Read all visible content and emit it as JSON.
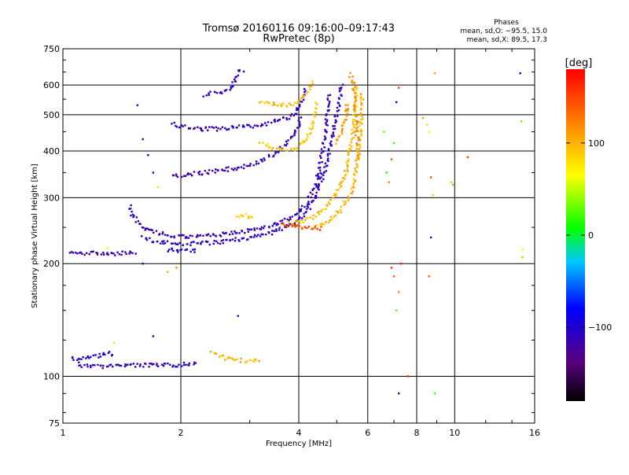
{
  "header": {
    "title": "Tromsø 20160116 09:16:00–09:17:43",
    "subtitle": "RwPretec (8p)"
  },
  "phase_box": {
    "title": "Phases",
    "line_o": "mean, sd,O: −95.5, 15.0",
    "line_x": "mean, sd,X:  89.5, 17.3"
  },
  "colorbar": {
    "unit_label": "[deg]",
    "range": [
      -180,
      180
    ],
    "ticks": [
      {
        "value": 100,
        "label": "100"
      },
      {
        "value": 0,
        "label": "0"
      },
      {
        "value": -100,
        "label": "−100"
      }
    ]
  },
  "chart_data": {
    "type": "scatter",
    "title": "Tromsø 20160116 09:16:00–09:17:43",
    "subtitle": "RwPretec (8p)",
    "xlabel": "Frequency [MHz]",
    "ylabel": "Stationary phase Virtual Height [km]",
    "x_scale": "log",
    "y_scale": "log",
    "xlim": [
      1,
      16
    ],
    "ylim": [
      75,
      750
    ],
    "x_ticks": [
      {
        "value": 1,
        "label": "1"
      },
      {
        "value": 2,
        "label": "2"
      },
      {
        "value": 4,
        "label": "4"
      },
      {
        "value": 6,
        "label": "6"
      },
      {
        "value": 8,
        "label": "8"
      },
      {
        "value": 10,
        "label": "10"
      },
      {
        "value": 16,
        "label": "16"
      }
    ],
    "y_ticks": [
      {
        "value": 75,
        "label": "75"
      },
      {
        "value": 100,
        "label": "100"
      },
      {
        "value": 200,
        "label": "200"
      },
      {
        "value": 300,
        "label": "300"
      },
      {
        "value": 400,
        "label": "400"
      },
      {
        "value": 500,
        "label": "500"
      },
      {
        "value": 600,
        "label": "600"
      },
      {
        "value": 750,
        "label": "750"
      }
    ],
    "x_gridlines": [
      2,
      4,
      6,
      8,
      10
    ],
    "y_gridlines": [
      100,
      200,
      300,
      400,
      500,
      600
    ],
    "grid": true,
    "color_variable": "phase (deg)",
    "color_range": [
      -180,
      180
    ],
    "traces": [
      {
        "name": "",
        "phase": -110,
        "points": [
          [
            1.1,
            107
          ],
          [
            1.15,
            106.5
          ],
          [
            1.2,
            107
          ],
          [
            1.3,
            106
          ],
          [
            1.4,
            107.5
          ],
          [
            1.5,
            107
          ],
          [
            1.6,
            107
          ],
          [
            1.7,
            107
          ],
          [
            1.8,
            107
          ],
          [
            1.9,
            107
          ],
          [
            2.0,
            107.5
          ],
          [
            2.1,
            108
          ],
          [
            2.2,
            108
          ]
        ]
      },
      {
        "name": "",
        "phase": -100,
        "points": [
          [
            1.05,
            112
          ],
          [
            1.1,
            110
          ],
          [
            1.15,
            112
          ],
          [
            1.2,
            113
          ],
          [
            1.25,
            114
          ],
          [
            1.3,
            116
          ],
          [
            1.35,
            113
          ]
        ]
      },
      {
        "name": "",
        "phase": 100,
        "points": [
          [
            2.4,
            116
          ],
          [
            2.5,
            114
          ],
          [
            2.6,
            112
          ],
          [
            2.7,
            111
          ],
          [
            2.8,
            110.5
          ],
          [
            2.9,
            110
          ],
          [
            3.0,
            110
          ],
          [
            3.1,
            110
          ],
          [
            3.2,
            110
          ]
        ]
      },
      {
        "name": "",
        "phase": -110,
        "points": [
          [
            1.05,
            213
          ],
          [
            1.1,
            213
          ],
          [
            1.15,
            213
          ],
          [
            1.2,
            213
          ],
          [
            1.3,
            213
          ],
          [
            1.4,
            213
          ],
          [
            1.5,
            213
          ],
          [
            1.55,
            214
          ]
        ]
      },
      {
        "name": "",
        "phase": -110,
        "points": [
          [
            1.48,
            285
          ],
          [
            1.5,
            270
          ],
          [
            1.55,
            258
          ],
          [
            1.6,
            250
          ],
          [
            1.7,
            243
          ],
          [
            1.8,
            240
          ],
          [
            2.0,
            236
          ],
          [
            2.2,
            236
          ],
          [
            2.4,
            238
          ],
          [
            2.6,
            240
          ],
          [
            2.8,
            243
          ],
          [
            3.0,
            245
          ],
          [
            3.2,
            248
          ],
          [
            3.4,
            252
          ],
          [
            3.6,
            258
          ],
          [
            3.8,
            265
          ],
          [
            4.0,
            275
          ],
          [
            4.2,
            290
          ],
          [
            4.4,
            320
          ],
          [
            4.5,
            350
          ],
          [
            4.6,
            400
          ],
          [
            4.7,
            460
          ],
          [
            4.75,
            520
          ],
          [
            4.8,
            570
          ]
        ]
      },
      {
        "name": "",
        "phase": -105,
        "points": [
          [
            1.6,
            235
          ],
          [
            1.7,
            230
          ],
          [
            1.8,
            228
          ],
          [
            2.0,
            226
          ],
          [
            2.2,
            226
          ],
          [
            2.5,
            228
          ],
          [
            2.8,
            232
          ],
          [
            3.1,
            236
          ],
          [
            3.4,
            242
          ],
          [
            3.7,
            250
          ],
          [
            4.0,
            262
          ],
          [
            4.2,
            275
          ],
          [
            4.4,
            300
          ],
          [
            4.6,
            340
          ],
          [
            4.8,
            400
          ],
          [
            4.9,
            450
          ],
          [
            5.0,
            500
          ],
          [
            5.1,
            560
          ],
          [
            5.15,
            610
          ]
        ]
      },
      {
        "name": "",
        "phase": -95,
        "points": [
          [
            1.85,
            218
          ],
          [
            2.0,
            216
          ],
          [
            2.2,
            216
          ]
        ]
      },
      {
        "name": "",
        "phase": -110,
        "points": [
          [
            1.9,
            475
          ],
          [
            2.0,
            465
          ],
          [
            2.2,
            458
          ],
          [
            2.5,
            458
          ],
          [
            2.8,
            462
          ],
          [
            3.1,
            467
          ],
          [
            3.4,
            475
          ],
          [
            3.7,
            488
          ],
          [
            3.9,
            500
          ],
          [
            4.0,
            520
          ],
          [
            4.1,
            555
          ],
          [
            4.15,
            590
          ]
        ]
      },
      {
        "name": "",
        "phase": -112,
        "points": [
          [
            1.9,
            345
          ],
          [
            2.0,
            345
          ],
          [
            2.2,
            348
          ],
          [
            2.5,
            355
          ],
          [
            2.8,
            360
          ],
          [
            3.1,
            372
          ],
          [
            3.3,
            382
          ],
          [
            3.5,
            395
          ],
          [
            3.7,
            415
          ],
          [
            3.9,
            445
          ],
          [
            4.0,
            470
          ],
          [
            4.05,
            500
          ]
        ]
      },
      {
        "name": "",
        "phase": -108,
        "points": [
          [
            2.3,
            565
          ],
          [
            2.4,
            570
          ],
          [
            2.5,
            575
          ],
          [
            2.6,
            580
          ],
          [
            2.7,
            590
          ],
          [
            2.8,
            650
          ],
          [
            2.9,
            655
          ]
        ]
      },
      {
        "name": "",
        "phase": 95,
        "points": [
          [
            3.2,
            545
          ],
          [
            3.4,
            535
          ],
          [
            3.6,
            530
          ],
          [
            3.8,
            530
          ],
          [
            4.0,
            545
          ],
          [
            4.2,
            570
          ],
          [
            4.3,
            600
          ],
          [
            4.35,
            620
          ]
        ]
      },
      {
        "name": "",
        "phase": 90,
        "points": [
          [
            3.2,
            420
          ],
          [
            3.4,
            408
          ],
          [
            3.6,
            402
          ],
          [
            3.8,
            402
          ],
          [
            4.0,
            410
          ],
          [
            4.2,
            430
          ],
          [
            4.3,
            460
          ],
          [
            4.4,
            500
          ],
          [
            4.45,
            540
          ]
        ]
      },
      {
        "name": "",
        "phase": 95,
        "points": [
          [
            3.8,
            255
          ],
          [
            4.0,
            258
          ],
          [
            4.2,
            262
          ],
          [
            4.4,
            268
          ],
          [
            4.6,
            278
          ],
          [
            4.8,
            292
          ],
          [
            5.0,
            310
          ],
          [
            5.2,
            335
          ],
          [
            5.3,
            360
          ],
          [
            5.4,
            400
          ],
          [
            5.5,
            450
          ],
          [
            5.55,
            500
          ],
          [
            5.6,
            560
          ],
          [
            5.6,
            610
          ]
        ]
      },
      {
        "name": "",
        "phase": 100,
        "points": [
          [
            4.3,
            248
          ],
          [
            4.5,
            252
          ],
          [
            4.7,
            258
          ],
          [
            4.9,
            266
          ],
          [
            5.1,
            278
          ],
          [
            5.3,
            295
          ],
          [
            5.5,
            320
          ],
          [
            5.6,
            350
          ],
          [
            5.7,
            400
          ],
          [
            5.75,
            450
          ],
          [
            5.8,
            520
          ],
          [
            5.8,
            580
          ]
        ]
      },
      {
        "name": "",
        "phase": 115,
        "points": [
          [
            5.4,
            640
          ],
          [
            5.5,
            620
          ],
          [
            5.55,
            560
          ],
          [
            5.6,
            480
          ],
          [
            5.65,
            420
          ],
          [
            5.7,
            380
          ]
        ]
      },
      {
        "name": "",
        "phase": 85,
        "points": [
          [
            2.8,
            268
          ],
          [
            2.9,
            270
          ],
          [
            3.0,
            265
          ],
          [
            3.1,
            262
          ]
        ]
      },
      {
        "name": "",
        "phase": 145,
        "points": [
          [
            3.6,
            255
          ],
          [
            3.8,
            252
          ],
          [
            4.1,
            250
          ],
          [
            4.6,
            248
          ]
        ]
      },
      {
        "name": "",
        "phase": 110,
        "points": [
          [
            5.0,
            420
          ],
          [
            5.1,
            440
          ],
          [
            5.2,
            470
          ],
          [
            5.3,
            500
          ],
          [
            5.3,
            540
          ]
        ]
      }
    ],
    "scatter_points": [
      {
        "x": 1.55,
        "y": 530,
        "phase": -110
      },
      {
        "x": 1.6,
        "y": 430,
        "phase": -105
      },
      {
        "x": 1.65,
        "y": 390,
        "phase": -100
      },
      {
        "x": 1.7,
        "y": 350,
        "phase": -95
      },
      {
        "x": 1.75,
        "y": 320,
        "phase": 80
      },
      {
        "x": 1.6,
        "y": 200,
        "phase": -100
      },
      {
        "x": 1.7,
        "y": 128,
        "phase": -110
      },
      {
        "x": 1.85,
        "y": 190,
        "phase": 100
      },
      {
        "x": 1.95,
        "y": 195,
        "phase": 120
      },
      {
        "x": 2.8,
        "y": 145,
        "phase": -110
      },
      {
        "x": 1.35,
        "y": 123,
        "phase": 80
      },
      {
        "x": 1.3,
        "y": 220,
        "phase": 60
      },
      {
        "x": 6.6,
        "y": 450,
        "phase": 30
      },
      {
        "x": 6.7,
        "y": 350,
        "phase": 10
      },
      {
        "x": 6.9,
        "y": 380,
        "phase": 140
      },
      {
        "x": 7.1,
        "y": 540,
        "phase": -110
      },
      {
        "x": 7.0,
        "y": 420,
        "phase": 20
      },
      {
        "x": 7.2,
        "y": 590,
        "phase": 150
      },
      {
        "x": 6.8,
        "y": 330,
        "phase": 120
      },
      {
        "x": 6.9,
        "y": 195,
        "phase": 160
      },
      {
        "x": 7.0,
        "y": 185,
        "phase": 140
      },
      {
        "x": 7.2,
        "y": 168,
        "phase": 120
      },
      {
        "x": 7.1,
        "y": 150,
        "phase": 30
      },
      {
        "x": 7.2,
        "y": 90,
        "phase": -110
      },
      {
        "x": 7.3,
        "y": 200,
        "phase": 170
      },
      {
        "x": 7.6,
        "y": 100,
        "phase": 160
      },
      {
        "x": 8.3,
        "y": 490,
        "phase": 110
      },
      {
        "x": 8.5,
        "y": 470,
        "phase": 80
      },
      {
        "x": 8.6,
        "y": 450,
        "phase": 70
      },
      {
        "x": 8.7,
        "y": 340,
        "phase": 150
      },
      {
        "x": 8.8,
        "y": 305,
        "phase": 90
      },
      {
        "x": 8.7,
        "y": 235,
        "phase": -110
      },
      {
        "x": 8.6,
        "y": 185,
        "phase": 140
      },
      {
        "x": 8.9,
        "y": 90,
        "phase": 20
      },
      {
        "x": 8.9,
        "y": 645,
        "phase": 110
      },
      {
        "x": 9.8,
        "y": 330,
        "phase": 40
      },
      {
        "x": 9.9,
        "y": 325,
        "phase": 110
      },
      {
        "x": 10.8,
        "y": 385,
        "phase": 150
      },
      {
        "x": 14.7,
        "y": 645,
        "phase": -100
      },
      {
        "x": 14.8,
        "y": 480,
        "phase": 30
      },
      {
        "x": 14.9,
        "y": 218,
        "phase": 60
      },
      {
        "x": 14.9,
        "y": 208,
        "phase": 100
      }
    ]
  }
}
